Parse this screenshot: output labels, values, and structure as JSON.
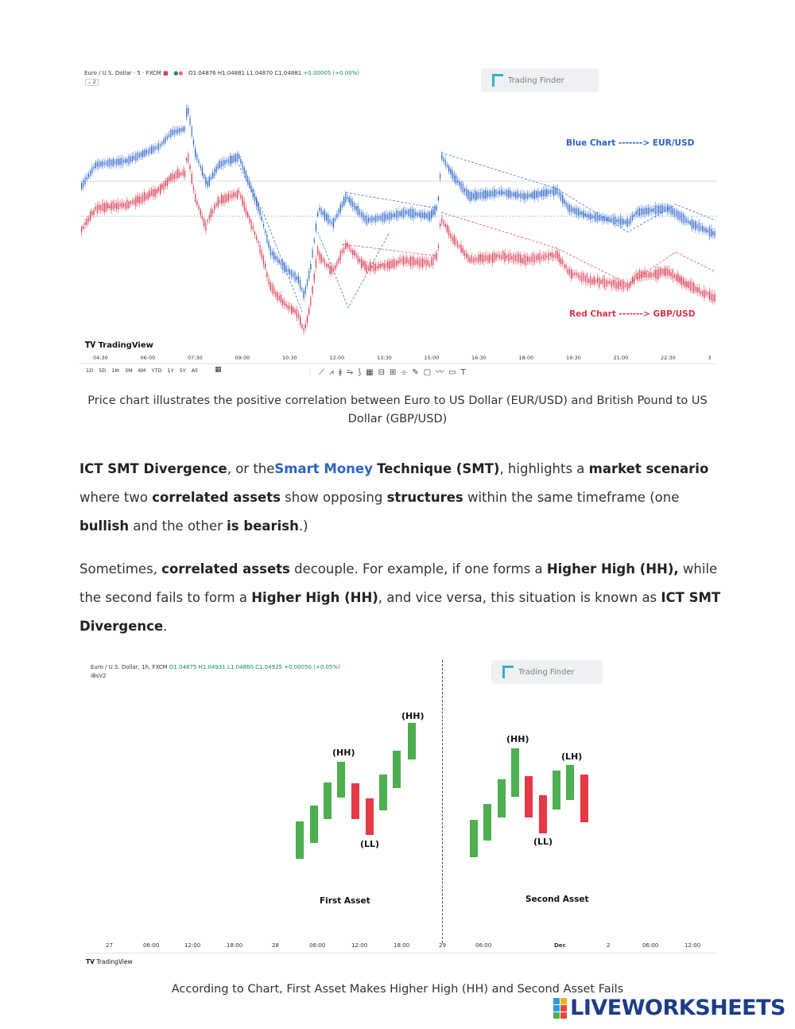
{
  "chart1": {
    "header": {
      "symbol": "Euro / U.S. Dollar · 5 · FXCM",
      "ohlc": "O1.04876  H1.04881  L1.04870  C1.04881",
      "change": "+0.00005 (+0.00%)",
      "collapse": "⌄ 2"
    },
    "brand_badge": "Trading Finder",
    "blue_label": "Blue Chart -------> EUR/USD",
    "red_label": "Red Chart -------> GBP/USD",
    "tv_brand": "TradingView",
    "time_ticks": [
      "04:30",
      "06:00",
      "07:30",
      "09:00",
      "10:30",
      "12:00",
      "13:30",
      "15:00",
      "16:30",
      "18:00",
      "19:30",
      "21:00",
      "22:30",
      "3"
    ],
    "ranges": [
      "1D",
      "5D",
      "1M",
      "3M",
      "6M",
      "YTD",
      "1Y",
      "5Y",
      "All"
    ],
    "colors": {
      "blue": "#2962c9",
      "red": "#d8364a"
    }
  },
  "caption1": "Price chart illustrates the positive correlation between Euro to US Dollar (EUR/USD) and British Pound to US Dollar (GBP/USD)",
  "para1": {
    "t1": "ICT SMT Divergence",
    "t2": ", or the",
    "t3": "Smart Money",
    "t4": " ",
    "t5": "Technique (SMT)",
    "t6": ", highlights a ",
    "t7": "market scenario",
    "t8": " where two ",
    "t9": "correlated assets",
    "t10": " show opposing ",
    "t11": "structures",
    "t12": " within the same timeframe (one ",
    "t13": "bullish",
    "t14": " and the other ",
    "t15": "is bearish",
    "t16": ".)"
  },
  "para2": {
    "t1": "Sometimes, ",
    "t2": "correlated assets",
    "t3": " decouple. For example, if one forms a ",
    "t4": "Higher High (HH),",
    "t5": " while the second fails to form a ",
    "t6": "Higher High (HH)",
    "t7": ", and vice versa, this situation is known as ",
    "t8": "ICT SMT Divergence",
    "t9": "."
  },
  "chart2": {
    "header": {
      "symbol": "Euro / U.S. Dollar, 1h, FXCM",
      "ohlc": "O1.04875  H1.04931  L1.04860  C1.04925",
      "change": "+0.00050 (+0.05%)",
      "indicator": "iBsV2"
    },
    "brand_badge": "Trading Finder",
    "first_asset": {
      "title": "First Asset",
      "labels": {
        "hh1": "(HH)",
        "hh2": "(HH)",
        "ll": "(LL)"
      }
    },
    "second_asset": {
      "title": "Second Asset",
      "labels": {
        "hh": "(HH)",
        "lh": "(LH)",
        "ll": "(LL)"
      }
    },
    "time_ticks": [
      "27",
      "06:00",
      "12:00",
      "18:00",
      "28",
      "06:00",
      "12:00",
      "18:00",
      "29",
      "06:00",
      "Dec",
      "2",
      "06:00",
      "12:00"
    ],
    "tv_brand": "TradingView",
    "colors": {
      "up": "#4caf50",
      "down": "#e53945"
    }
  },
  "caption2": "According to Chart, First Asset Makes Higher High (HH) and Second Asset Fails",
  "watermark": "LIVEWORKSHEETS"
}
